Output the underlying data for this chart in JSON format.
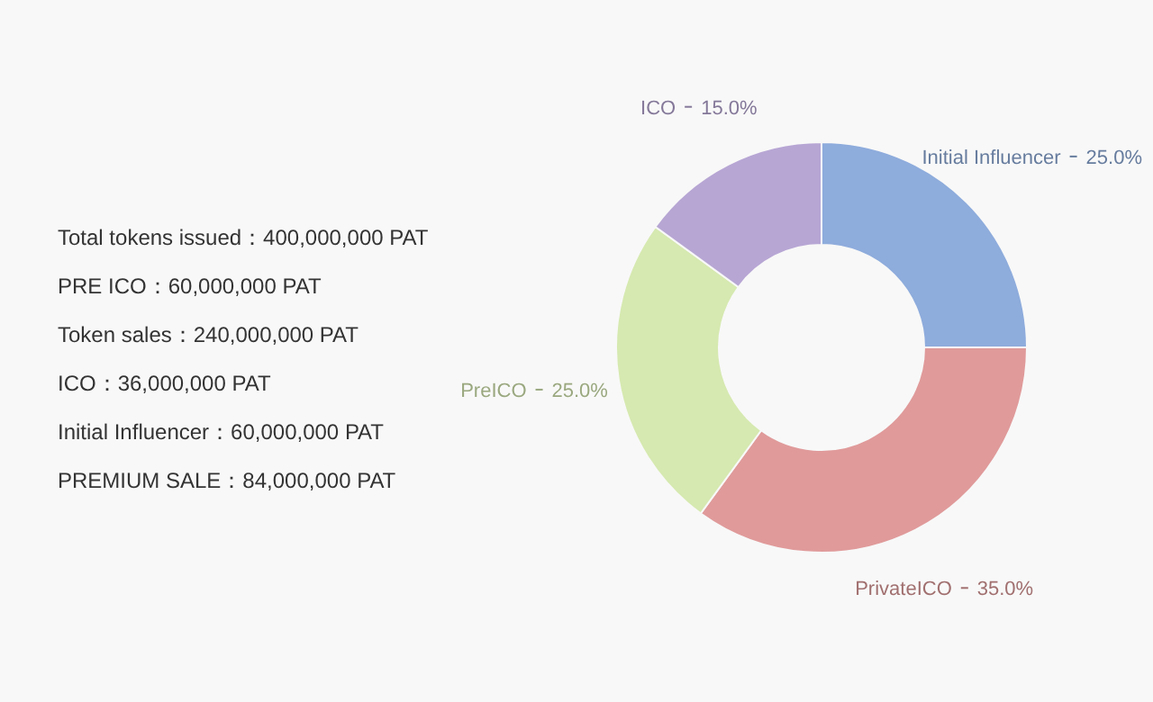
{
  "chart_data": [
    {
      "type": "donut",
      "categories": [
        "Initial Influencer",
        "PrivateICO",
        "PreICO",
        "ICO"
      ],
      "values": [
        25.0,
        35.0,
        25.0,
        15.0
      ],
      "colors": [
        "#8eacdc",
        "#e09a9a",
        "#d6e9b0",
        "#b7a6d4"
      ],
      "value_labels": [
        "25.0%",
        "35.0%",
        "25.0%",
        "15.0%"
      ]
    },
    {
      "type": "other",
      "annotations": [
        "Total tokens issued：400,000,000 PAT",
        "PRE ICO：60,000,000 PAT",
        "Token sales：240,000,000 PAT",
        "ICO：36,000,000 PAT",
        "Initial Influencer：60,000,000 PAT",
        "PREMIUM SALE：84,000,000 PAT"
      ]
    }
  ]
}
